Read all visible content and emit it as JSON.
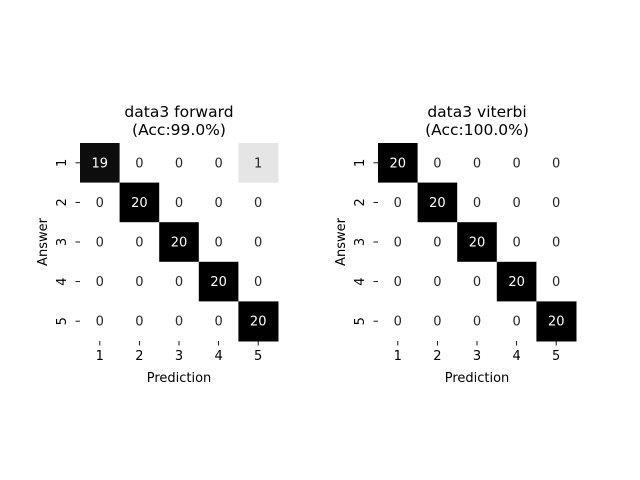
{
  "chart_data": [
    {
      "type": "heatmap",
      "title": "data3 forward",
      "subtitle": "(Acc:99.0%)",
      "xlabel": "Prediction",
      "ylabel": "Answer",
      "x_categories": [
        "1",
        "2",
        "3",
        "4",
        "5"
      ],
      "y_categories": [
        "1",
        "2",
        "3",
        "4",
        "5"
      ],
      "values": [
        [
          19,
          0,
          0,
          0,
          1
        ],
        [
          0,
          20,
          0,
          0,
          0
        ],
        [
          0,
          0,
          20,
          0,
          0
        ],
        [
          0,
          0,
          0,
          20,
          0
        ],
        [
          0,
          0,
          0,
          0,
          20
        ]
      ],
      "value_range": [
        0,
        20
      ],
      "colormap": "greys",
      "colorbar": false
    },
    {
      "type": "heatmap",
      "title": "data3 viterbi",
      "subtitle": "(Acc:100.0%)",
      "xlabel": "Prediction",
      "ylabel": "Answer",
      "x_categories": [
        "1",
        "2",
        "3",
        "4",
        "5"
      ],
      "y_categories": [
        "1",
        "2",
        "3",
        "4",
        "5"
      ],
      "values": [
        [
          20,
          0,
          0,
          0,
          0
        ],
        [
          0,
          20,
          0,
          0,
          0
        ],
        [
          0,
          0,
          20,
          0,
          0
        ],
        [
          0,
          0,
          0,
          20,
          0
        ],
        [
          0,
          0,
          0,
          0,
          20
        ]
      ],
      "value_range": [
        0,
        20
      ],
      "colormap": "greys",
      "colorbar": false
    }
  ]
}
